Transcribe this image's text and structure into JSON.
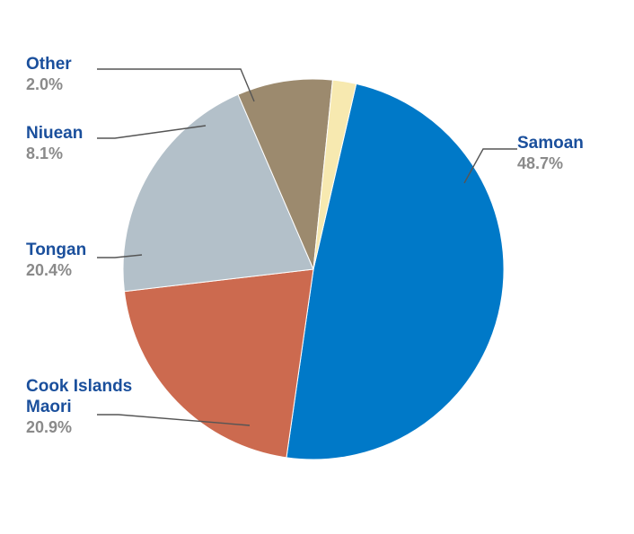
{
  "chart_data": {
    "type": "pie",
    "slices": [
      {
        "name": "Samoan",
        "name_lines": [
          "Samoan"
        ],
        "value": 48.7,
        "label": "48.7%",
        "color": "#0079c8"
      },
      {
        "name": "Cook Islands Maori",
        "name_lines": [
          "Cook Islands",
          "Maori"
        ],
        "value": 20.9,
        "label": "20.9%",
        "color": "#cc6a4f"
      },
      {
        "name": "Tongan",
        "name_lines": [
          "Tongan"
        ],
        "value": 20.4,
        "label": "20.4%",
        "color": "#b3c0c9"
      },
      {
        "name": "Niuean",
        "name_lines": [
          "Niuean"
        ],
        "value": 8.1,
        "label": "8.1%",
        "color": "#9c8a6e"
      },
      {
        "name": "Other",
        "name_lines": [
          "Other"
        ],
        "value": 2.0,
        "label": "2.0%",
        "color": "#f7e9b0"
      }
    ],
    "start_angle_deg": 13,
    "direction": "clockwise",
    "legend": "none"
  }
}
